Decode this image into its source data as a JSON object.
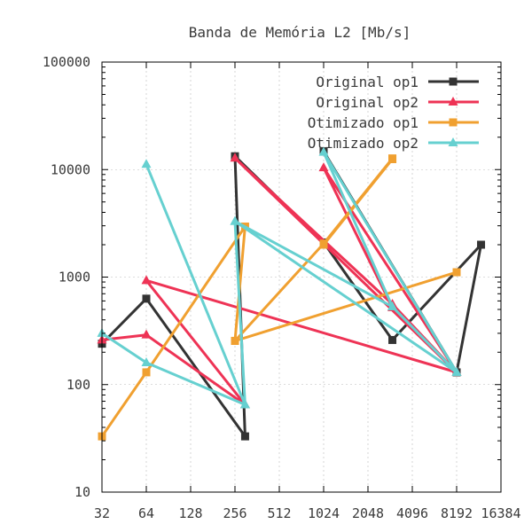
{
  "chart_data": {
    "type": "line",
    "title": "Banda de Memória L2 [Mb/s]",
    "xlabel": "",
    "ylabel": "",
    "x_scale": "log2",
    "y_scale": "log10",
    "xlim": [
      32,
      16384
    ],
    "ylim": [
      10,
      100000
    ],
    "grid": true,
    "legend_position": "top-right",
    "x_ticks": [
      32,
      64,
      128,
      256,
      512,
      1024,
      2048,
      4096,
      8192,
      16384
    ],
    "x_tick_labels": [
      "32",
      "64",
      "128",
      "256",
      "512",
      "1024",
      "2048",
      "4096",
      "8192",
      "16384"
    ],
    "y_ticks": [
      10,
      100,
      1000,
      10000,
      100000
    ],
    "y_tick_labels": [
      "10",
      "100",
      "1000",
      "10000",
      "100000"
    ],
    "series": [
      {
        "name": "Original op1",
        "color": "#333333",
        "marker": "square",
        "x": [
          32,
          64,
          300,
          256,
          1024,
          3000,
          12000,
          8192,
          1024
        ],
        "y": [
          240,
          630,
          33,
          13300,
          2100,
          260,
          2000,
          130,
          14800
        ]
      },
      {
        "name": "Original op2",
        "color": "#ee3355",
        "marker": "triangle",
        "x": [
          32,
          64,
          300,
          64,
          8192,
          256,
          3000,
          8192,
          1024,
          3000
        ],
        "y": [
          260,
          290,
          65,
          930,
          130,
          12800,
          560,
          130,
          10400,
          520
        ]
      },
      {
        "name": "Otimizado op1",
        "color": "#f0a030",
        "marker": "square",
        "x": [
          32,
          64,
          300,
          256,
          8192,
          256,
          1024,
          3000,
          1024,
          3000
        ],
        "y": [
          33,
          130,
          2950,
          255,
          1110,
          255,
          2050,
          12700,
          2000,
          12500
        ]
      },
      {
        "name": "Otimizado op2",
        "color": "#66d0d0",
        "marker": "triangle",
        "x": [
          32,
          64,
          300,
          64,
          300,
          256,
          8192,
          256,
          3000,
          8192,
          1024,
          3000
        ],
        "y": [
          300,
          160,
          65,
          11200,
          65,
          3300,
          130,
          3300,
          530,
          130,
          14500,
          530
        ]
      }
    ]
  }
}
